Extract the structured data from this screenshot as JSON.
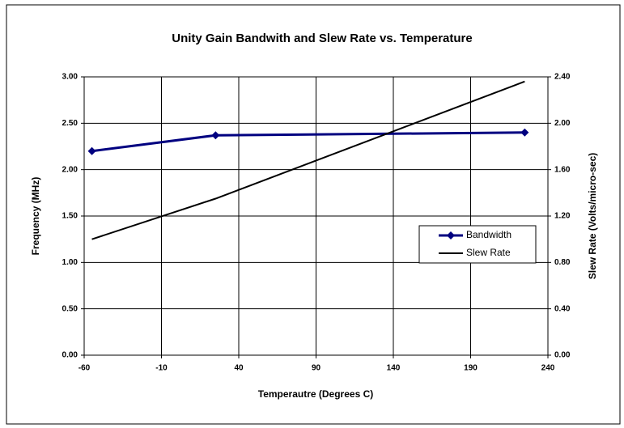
{
  "chart_data": {
    "type": "line",
    "title": "Unity Gain Bandwith and Slew Rate vs. Temperature",
    "xlabel": "Temperautre (Degrees C)",
    "ylabel": "Frequency (MHz)",
    "y2label": "Slew Rate (Volts/micro-sec)",
    "x": [
      -55,
      25,
      225
    ],
    "series": [
      {
        "name": "Bandwidth",
        "color": "#000080",
        "marker": "diamond",
        "values": [
          2.2,
          2.37,
          2.4
        ]
      },
      {
        "name": "Slew Rate",
        "color": "#000000",
        "axis": "y2",
        "values": [
          1.0,
          1.35,
          2.36
        ]
      }
    ],
    "xlim": [
      -60,
      240
    ],
    "xticks": [
      -60,
      -10,
      40,
      90,
      140,
      190,
      240
    ],
    "ylim": [
      0,
      3
    ],
    "yticks": [
      {
        "value": 0,
        "label": "0.00"
      },
      {
        "value": 0.5,
        "label": "0.50"
      },
      {
        "value": 1,
        "label": "1.00"
      },
      {
        "value": 1.5,
        "label": "1.50"
      },
      {
        "value": 2,
        "label": "2.00"
      },
      {
        "value": 2.5,
        "label": "2.50"
      },
      {
        "value": 3,
        "label": "3.00"
      }
    ],
    "y2lim": [
      0,
      2.4
    ],
    "y2ticks": [
      {
        "value": 0,
        "label": "0.00"
      },
      {
        "value": 0.4,
        "label": "0.40"
      },
      {
        "value": 0.8,
        "label": "0.80"
      },
      {
        "value": 1.2,
        "label": "1.20"
      },
      {
        "value": 1.6,
        "label": "1.60"
      },
      {
        "value": 2,
        "label": "2.00"
      },
      {
        "value": 2.4,
        "label": "2.40"
      }
    ],
    "grid": true,
    "legend": "right"
  }
}
